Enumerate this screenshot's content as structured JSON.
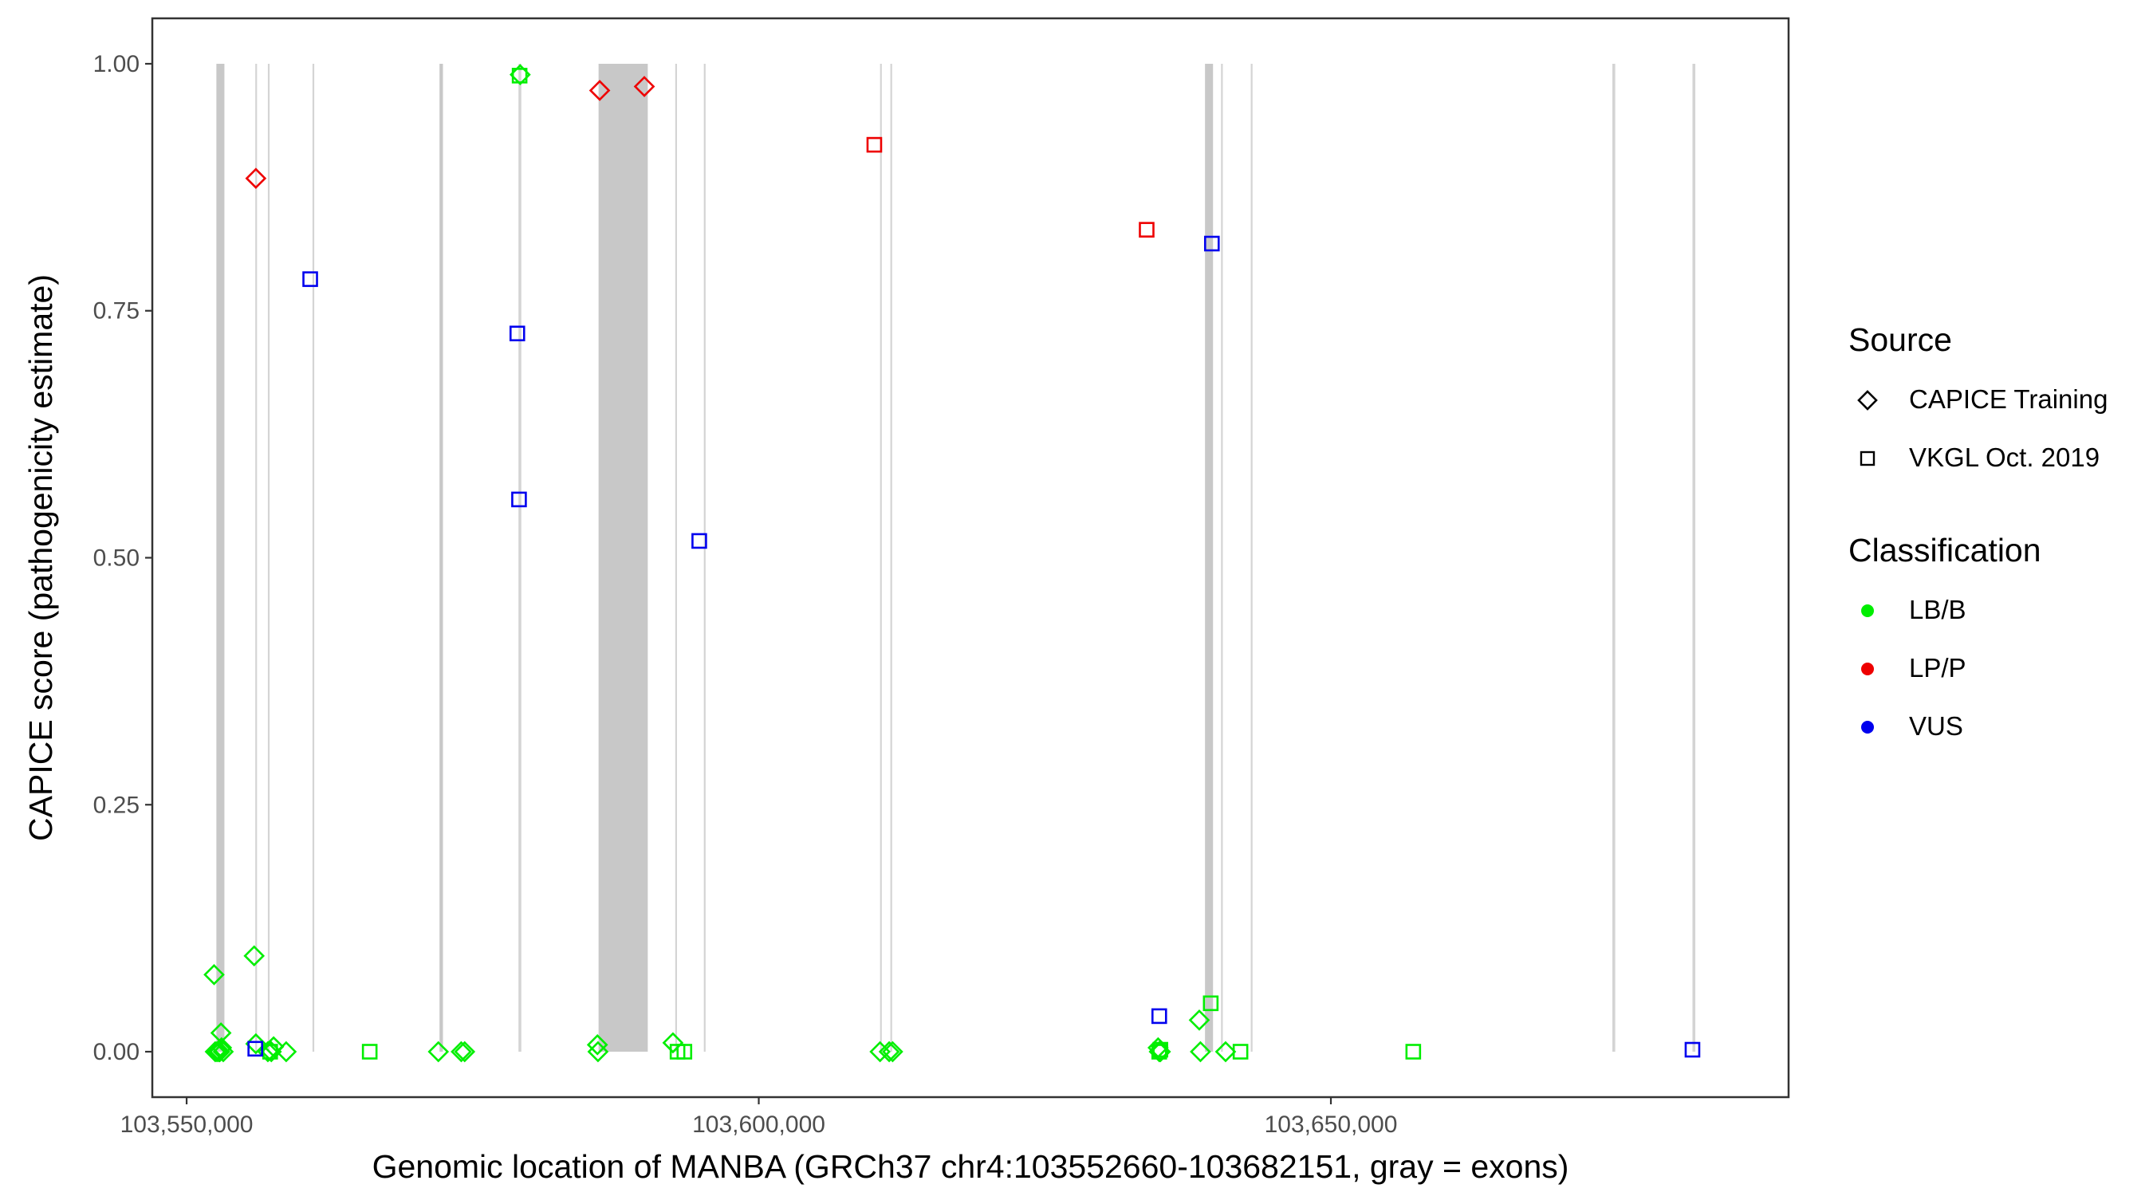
{
  "colors": {
    "LB/B": "#00ee00",
    "LP/P": "#ee0000",
    "VUS": "#0000ee",
    "exon": "#c8c8c8",
    "gridline": "#d4d4d4",
    "axis": "#333333"
  },
  "chart_data": {
    "type": "scatter",
    "title": "",
    "xlabel": "Genomic location of MANBA (GRCh37 chr4:103552660-103682151, gray = exons)",
    "ylabel": "CAPICE score (pathogenicity estimate)",
    "xlim": [
      103547000,
      103690000
    ],
    "ylim": [
      -0.046,
      1.046
    ],
    "x_ticks": [
      103550000,
      103600000,
      103650000
    ],
    "x_tick_labels": [
      "103,550,000",
      "103,600,000",
      "103,650,000"
    ],
    "y_ticks": [
      0,
      0.25,
      0.5,
      0.75,
      1
    ],
    "y_tick_labels": [
      "0.00",
      "0.25",
      "0.50",
      "0.75",
      "1.00"
    ],
    "grid": false,
    "legend_position": "right",
    "exons": [
      {
        "start": 103552600,
        "end": 103553300
      },
      {
        "start": 103556000,
        "end": 103556150
      },
      {
        "start": 103557100,
        "end": 103557250
      },
      {
        "start": 103561000,
        "end": 103561150
      },
      {
        "start": 103572100,
        "end": 103572400
      },
      {
        "start": 103579000,
        "end": 103579250
      },
      {
        "start": 103586000,
        "end": 103590300
      },
      {
        "start": 103592700,
        "end": 103592850
      },
      {
        "start": 103595200,
        "end": 103595350
      },
      {
        "start": 103610600,
        "end": 103610750
      },
      {
        "start": 103611500,
        "end": 103611650
      },
      {
        "start": 103639000,
        "end": 103639700
      },
      {
        "start": 103640400,
        "end": 103640550
      },
      {
        "start": 103643000,
        "end": 103643150
      },
      {
        "start": 103674600,
        "end": 103674850
      },
      {
        "start": 103681600,
        "end": 103681850
      }
    ],
    "legends": [
      {
        "title": "Source",
        "items": [
          {
            "label": "CAPICE Training",
            "shape": "diamond"
          },
          {
            "label": "VKGL Oct. 2019",
            "shape": "square"
          }
        ]
      },
      {
        "title": "Classification",
        "items": [
          {
            "label": "LB/B",
            "shape": "dot",
            "color_key": "LB/B"
          },
          {
            "label": "LP/P",
            "shape": "dot",
            "color_key": "LP/P"
          },
          {
            "label": "VUS",
            "shape": "dot",
            "color_key": "VUS"
          }
        ]
      }
    ],
    "series": [
      {
        "source": "CAPICE Training",
        "shape": "diamond",
        "classification": "LB/B",
        "points": [
          [
            103552400,
            0.078
          ],
          [
            103553000,
            0.019
          ],
          [
            103552500,
            0.0
          ],
          [
            103552650,
            0.0
          ],
          [
            103552800,
            0.0
          ],
          [
            103552900,
            0.0
          ],
          [
            103553050,
            0.004
          ],
          [
            103553200,
            0.0
          ],
          [
            103555900,
            0.097
          ],
          [
            103556050,
            0.008
          ],
          [
            103557100,
            0.0
          ],
          [
            103557400,
            0.0
          ],
          [
            103557600,
            0.005
          ],
          [
            103558700,
            0.0
          ],
          [
            103572000,
            0.0
          ],
          [
            103574000,
            0.0
          ],
          [
            103574300,
            0.0
          ],
          [
            103579150,
            0.989
          ],
          [
            103585900,
            0.007
          ],
          [
            103585950,
            0.0
          ],
          [
            103592500,
            0.009
          ],
          [
            103610600,
            0.0
          ],
          [
            103611400,
            0.0
          ],
          [
            103611700,
            0.0
          ],
          [
            103634900,
            0.004
          ],
          [
            103635000,
            0.0
          ],
          [
            103635100,
            0.0
          ],
          [
            103640800,
            0.0
          ],
          [
            103638500,
            0.032
          ],
          [
            103638600,
            0.0
          ]
        ]
      },
      {
        "source": "CAPICE Training",
        "shape": "diamond",
        "classification": "LP/P",
        "points": [
          [
            103556050,
            0.884
          ],
          [
            103586100,
            0.973
          ],
          [
            103590000,
            0.977
          ]
        ]
      },
      {
        "source": "VKGL Oct. 2019",
        "shape": "square",
        "classification": "LB/B",
        "points": [
          [
            103557300,
            0.0
          ],
          [
            103566000,
            0.0
          ],
          [
            103579100,
            0.988
          ],
          [
            103592900,
            0.0
          ],
          [
            103593500,
            0.0
          ],
          [
            103635000,
            0.0
          ],
          [
            103635100,
            0.002
          ],
          [
            103639500,
            0.049
          ],
          [
            103642100,
            0.0
          ],
          [
            103657200,
            0.0
          ]
        ]
      },
      {
        "source": "VKGL Oct. 2019",
        "shape": "square",
        "classification": "LP/P",
        "points": [
          [
            103610100,
            0.918
          ],
          [
            103633900,
            0.832
          ]
        ]
      },
      {
        "source": "VKGL Oct. 2019",
        "shape": "square",
        "classification": "VUS",
        "points": [
          [
            103556000,
            0.003
          ],
          [
            103560800,
            0.782
          ],
          [
            103578900,
            0.727
          ],
          [
            103579050,
            0.559
          ],
          [
            103594800,
            0.517
          ],
          [
            103635000,
            0.036
          ],
          [
            103639600,
            0.818
          ],
          [
            103681600,
            0.002
          ]
        ]
      }
    ]
  }
}
